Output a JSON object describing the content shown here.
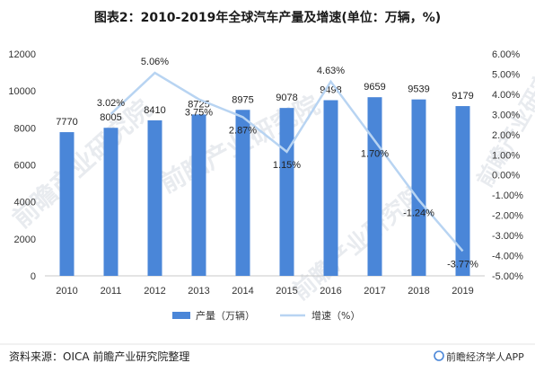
{
  "title": "图表2：2010-2019年全球汽车产量及增速(单位：万辆，%)",
  "source": "资料来源：OICA 前瞻产业研究院整理",
  "brand": "前瞻经济学人APP",
  "watermark": "前瞻产业研究院",
  "colors": {
    "bar": "#4a86d8",
    "line": "#b8d4f2"
  },
  "chart_data": {
    "type": "bar",
    "categories": [
      "2010",
      "2011",
      "2012",
      "2013",
      "2014",
      "2015",
      "2016",
      "2017",
      "2018",
      "2019"
    ],
    "series": [
      {
        "name": "产量（万辆）",
        "type": "bar",
        "axis": "left",
        "values": [
          7770,
          8005,
          8410,
          8725,
          8975,
          9078,
          9498,
          9659,
          9539,
          9179
        ],
        "labels": [
          "7770",
          "8005",
          "8410",
          "8725",
          "8975",
          "9078",
          "9498",
          "9659",
          "9539",
          "9179"
        ]
      },
      {
        "name": "增速（%）",
        "type": "line",
        "axis": "right",
        "values": [
          null,
          3.02,
          5.06,
          3.75,
          2.87,
          1.15,
          4.63,
          1.7,
          -1.24,
          -3.77
        ],
        "labels": [
          "",
          "3.02%",
          "5.06%",
          "3.75%",
          "2.87%",
          "1.15%",
          "4.63%",
          "1.70%",
          "-1.24%",
          "-3.77%"
        ]
      }
    ],
    "y_left": {
      "min": 0,
      "max": 12000,
      "ticks": [
        "0",
        "2000",
        "4000",
        "6000",
        "8000",
        "10000",
        "12000"
      ]
    },
    "y_right": {
      "min": -5,
      "max": 6,
      "ticks": [
        "-5.00%",
        "-4.00%",
        "-3.00%",
        "-2.00%",
        "-1.00%",
        "0.00%",
        "1.00%",
        "2.00%",
        "3.00%",
        "4.00%",
        "5.00%",
        "6.00%"
      ]
    },
    "grid": false,
    "legend_position": "bottom"
  }
}
